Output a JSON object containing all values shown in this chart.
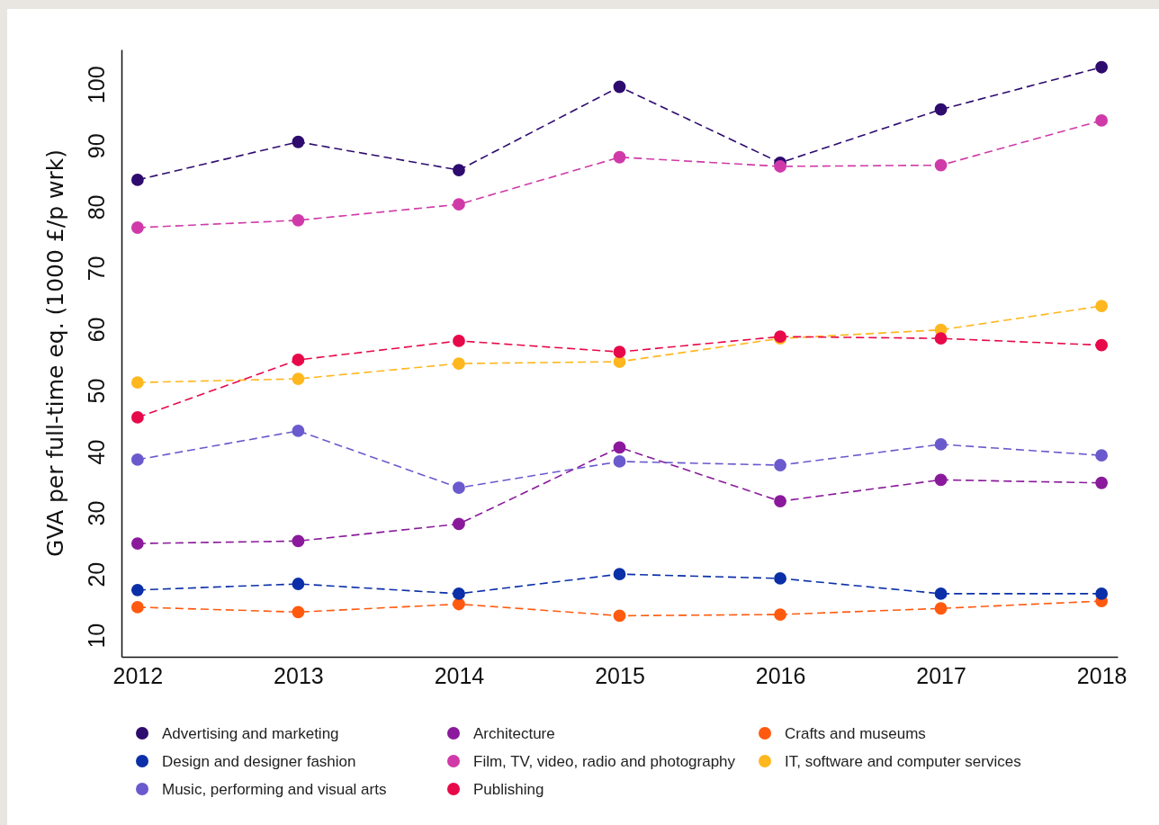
{
  "chart_data": {
    "type": "line",
    "ylabel": "GVA per full-time eq. (1000 £/p wrk)",
    "x": [
      2012,
      2013,
      2014,
      2015,
      2016,
      2017,
      2018
    ],
    "xlim": [
      2011.9,
      2018.1
    ],
    "xticks": [
      2012,
      2013,
      2014,
      2015,
      2016,
      2017,
      2018
    ],
    "ylim": [
      6.5,
      105.7
    ],
    "yticks": [
      10,
      20,
      30,
      40,
      50,
      60,
      70,
      80,
      90,
      100
    ],
    "grid": false,
    "legend": "bottom",
    "marker": "circle",
    "line_style": "dashed",
    "series": [
      {
        "name": "Advertising and marketing",
        "color": "#2e0b6e",
        "values": [
          84.4,
          90.6,
          86.0,
          99.6,
          87.2,
          95.9,
          102.8
        ]
      },
      {
        "name": "Architecture",
        "color": "#8a1a9b",
        "values": [
          25.0,
          25.4,
          28.2,
          40.7,
          31.9,
          35.4,
          34.9
        ]
      },
      {
        "name": "Crafts and museums",
        "color": "#ff5a0f",
        "values": [
          14.6,
          13.8,
          15.1,
          13.2,
          13.4,
          14.4,
          15.6
        ]
      },
      {
        "name": "Design and designer fashion",
        "color": "#0b2fa8",
        "values": [
          17.4,
          18.4,
          16.8,
          20.0,
          19.3,
          16.8,
          16.8
        ]
      },
      {
        "name": "Film, TV, video, radio and photography",
        "color": "#d03aa8",
        "values": [
          76.6,
          77.8,
          80.4,
          88.1,
          86.6,
          86.8,
          94.1
        ]
      },
      {
        "name": "IT, software and computer services",
        "color": "#ffb71f",
        "values": [
          51.3,
          51.9,
          54.4,
          54.7,
          58.5,
          59.9,
          63.8
        ]
      },
      {
        "name": "Music, performing and visual arts",
        "color": "#6a5acd",
        "values": [
          38.7,
          43.4,
          34.1,
          38.4,
          37.8,
          41.2,
          39.4
        ]
      },
      {
        "name": "Publishing",
        "color": "#e8094a",
        "values": [
          45.6,
          55.0,
          58.1,
          56.3,
          58.8,
          58.5,
          57.4
        ]
      }
    ]
  }
}
